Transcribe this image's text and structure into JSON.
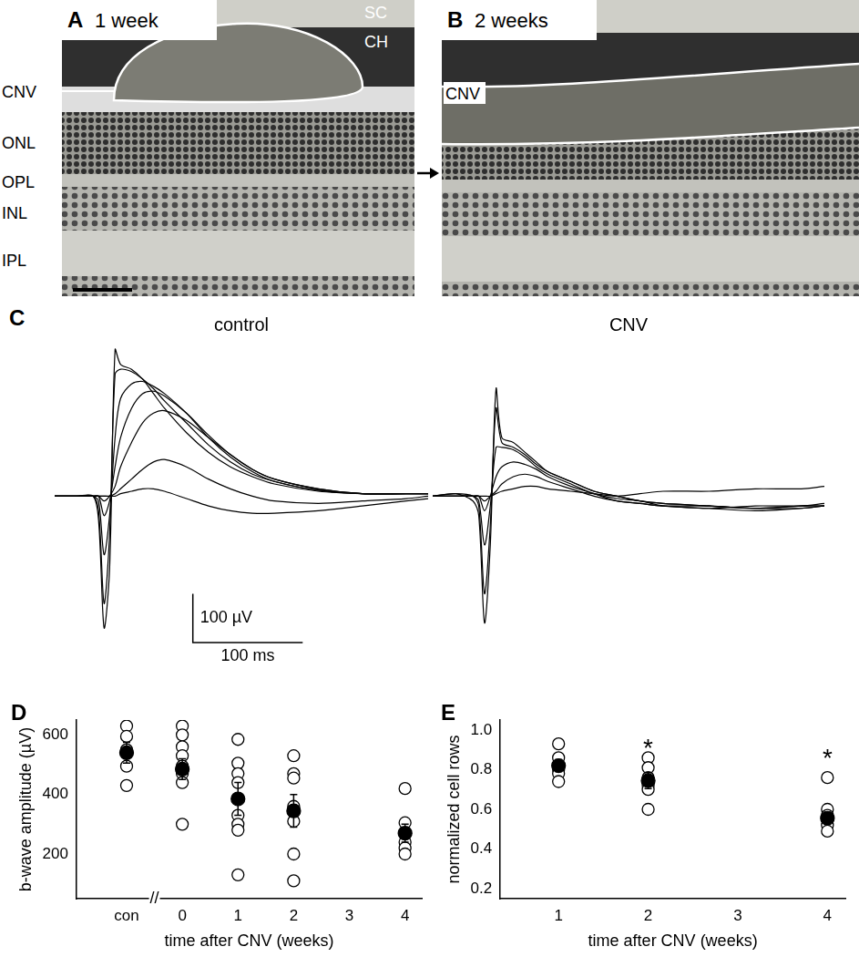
{
  "panel_labels": [
    "A",
    "B",
    "C",
    "D",
    "E"
  ],
  "histology": [
    {
      "caption": "1 week",
      "labels": [
        "CNV",
        "SC",
        "CH",
        "ONL",
        "OPL",
        "INL",
        "IPL"
      ]
    },
    {
      "caption": "2 weeks",
      "labels": [
        "CNV"
      ]
    }
  ],
  "chart_data": [
    {
      "type": "line",
      "title": "control",
      "x": [
        0,
        20,
        35,
        40,
        45,
        50,
        55,
        60,
        70,
        80,
        90,
        100,
        120,
        140,
        160,
        180,
        200,
        240,
        280,
        320,
        340
      ],
      "xlim": [
        0,
        340
      ],
      "ylim": [
        -300,
        320
      ],
      "tick_labels": false,
      "grid": false,
      "series": [
        {
          "color": "#000000",
          "line_style": "solid",
          "values": [
            0,
            0,
            0,
            -50,
            -270,
            -150,
            300,
            270,
            260,
            240,
            210,
            180,
            130,
            90,
            60,
            40,
            25,
            10,
            5,
            5,
            5
          ]
        },
        {
          "color": "#000000",
          "line_style": "solid",
          "values": [
            0,
            0,
            0,
            -30,
            -220,
            -80,
            250,
            260,
            255,
            240,
            220,
            195,
            150,
            105,
            70,
            45,
            30,
            12,
            5,
            5,
            5
          ]
        },
        {
          "color": "#000000",
          "line_style": "solid",
          "values": [
            0,
            0,
            0,
            -10,
            -120,
            -40,
            120,
            200,
            230,
            235,
            225,
            210,
            170,
            120,
            80,
            50,
            30,
            12,
            5,
            5,
            5
          ]
        },
        {
          "color": "#000000",
          "line_style": "solid",
          "values": [
            0,
            0,
            0,
            0,
            -40,
            -10,
            60,
            120,
            180,
            210,
            215,
            205,
            170,
            125,
            85,
            55,
            35,
            15,
            5,
            5,
            5
          ]
        },
        {
          "color": "#000000",
          "line_style": "solid",
          "values": [
            0,
            0,
            0,
            0,
            -10,
            0,
            20,
            60,
            110,
            150,
            170,
            175,
            155,
            120,
            85,
            55,
            35,
            15,
            5,
            5,
            5
          ]
        },
        {
          "color": "#000000",
          "line_style": "solid",
          "values": [
            0,
            0,
            0,
            0,
            0,
            0,
            5,
            15,
            35,
            55,
            70,
            75,
            60,
            35,
            15,
            0,
            -10,
            -15,
            -10,
            -5,
            0
          ]
        },
        {
          "color": "#000000",
          "line_style": "solid",
          "values": [
            0,
            0,
            0,
            0,
            0,
            0,
            0,
            5,
            10,
            15,
            15,
            10,
            -5,
            -20,
            -30,
            -35,
            -35,
            -30,
            -20,
            -10,
            -5
          ]
        }
      ],
      "scale_bar": {
        "x": 100,
        "y": 100,
        "x_label": "100 ms",
        "y_label": "100 µV"
      }
    },
    {
      "type": "line",
      "title": "CNV",
      "x": [
        0,
        20,
        35,
        40,
        45,
        50,
        55,
        60,
        70,
        80,
        90,
        100,
        120,
        140,
        160,
        180,
        200,
        240,
        280,
        320,
        340
      ],
      "xlim": [
        0,
        340
      ],
      "ylim": [
        -300,
        320
      ],
      "tick_labels": false,
      "grid": false,
      "series": [
        {
          "color": "#000000",
          "line_style": "solid",
          "values": [
            0,
            5,
            -10,
            -40,
            -260,
            -100,
            220,
            120,
            110,
            90,
            70,
            50,
            30,
            10,
            0,
            -10,
            -15,
            -20,
            -25,
            -25,
            -20
          ]
        },
        {
          "color": "#000000",
          "line_style": "solid",
          "values": [
            0,
            5,
            0,
            -20,
            -200,
            -60,
            180,
            110,
            100,
            85,
            65,
            50,
            30,
            10,
            0,
            -10,
            -15,
            -20,
            -25,
            -20,
            -20
          ]
        },
        {
          "color": "#000000",
          "line_style": "solid",
          "values": [
            0,
            0,
            0,
            -10,
            -100,
            -20,
            100,
            100,
            95,
            80,
            60,
            45,
            25,
            5,
            -5,
            -10,
            -20,
            -25,
            -30,
            -25,
            -20
          ]
        },
        {
          "color": "#000000",
          "line_style": "solid",
          "values": [
            0,
            0,
            0,
            0,
            -30,
            0,
            40,
            60,
            70,
            65,
            55,
            40,
            20,
            5,
            -10,
            -15,
            -20,
            -20,
            -25,
            -20,
            -20
          ]
        },
        {
          "color": "#000000",
          "line_style": "solid",
          "values": [
            0,
            0,
            0,
            0,
            -10,
            0,
            10,
            25,
            40,
            45,
            40,
            30,
            15,
            0,
            -10,
            -15,
            -20,
            -25,
            -20,
            -20,
            -15
          ]
        },
        {
          "color": "#000000",
          "line_style": "solid",
          "values": [
            0,
            0,
            0,
            0,
            0,
            0,
            5,
            10,
            15,
            20,
            20,
            15,
            10,
            5,
            0,
            5,
            10,
            10,
            15,
            15,
            20
          ]
        }
      ]
    },
    {
      "type": "scatter",
      "x_label": "time after CNV (weeks)",
      "y_label": "b-wave amplitude (µV)",
      "xlim": [
        -1.9,
        4.3
      ],
      "xticks": [
        {
          "value": -1,
          "label": "con"
        },
        0,
        1,
        2,
        3,
        4
      ],
      "ylim": [
        50,
        650
      ],
      "yticks": [
        200,
        400,
        600
      ],
      "grid": false,
      "series": [
        {
          "marker": "open circle",
          "color": "#000000",
          "x": [
            -1,
            -1,
            -1,
            -1,
            -1,
            0,
            0,
            0,
            0,
            0,
            0,
            0,
            0,
            1,
            1,
            1,
            1,
            1,
            1,
            1,
            1,
            2,
            2,
            2,
            2,
            2,
            2,
            2,
            4,
            4,
            4,
            4,
            4,
            4
          ],
          "values": [
            630,
            595,
            550,
            495,
            430,
            630,
            600,
            560,
            530,
            495,
            470,
            440,
            300,
            585,
            505,
            470,
            440,
            330,
            300,
            280,
            130,
            530,
            470,
            455,
            360,
            310,
            200,
            110,
            420,
            305,
            270,
            240,
            220,
            200
          ]
        },
        {
          "marker": "filled circle",
          "color": "#000000",
          "x": [
            -1,
            0,
            1,
            2,
            4
          ],
          "values": [
            540,
            485,
            385,
            345,
            270
          ],
          "error": [
            35,
            35,
            55,
            55,
            30
          ]
        }
      ],
      "annotations": [
        {
          "text": "//",
          "x": -0.5,
          "y": 50
        }
      ]
    },
    {
      "type": "scatter",
      "x_label": "time after CNV (weeks)",
      "y_label": "normalized cell rows",
      "xlim": [
        0.35,
        4.2
      ],
      "xticks": [
        1,
        2,
        3,
        4
      ],
      "ylim": [
        0.15,
        1.05
      ],
      "yticks": [
        0.2,
        0.4,
        0.6,
        0.8,
        {
          "value": 1,
          "label": "1.0"
        }
      ],
      "grid": false,
      "series": [
        {
          "marker": "open circle",
          "color": "#000000",
          "x": [
            1,
            1,
            1,
            1,
            1,
            1,
            2,
            2,
            2,
            2,
            2,
            2,
            4,
            4,
            4,
            4,
            4,
            4
          ],
          "values": [
            0.93,
            0.86,
            0.82,
            0.8,
            0.78,
            0.74,
            0.86,
            0.81,
            0.76,
            0.72,
            0.7,
            0.6,
            0.76,
            0.6,
            0.57,
            0.55,
            0.52,
            0.49
          ]
        },
        {
          "marker": "filled circle",
          "color": "#000000",
          "x": [
            1,
            2,
            4
          ],
          "values": [
            0.82,
            0.745,
            0.555
          ],
          "error": [
            0.03,
            0.04,
            0.03
          ]
        }
      ],
      "annotations": [
        {
          "text": "*",
          "x": 2,
          "y": 0.93
        },
        {
          "text": "*",
          "x": 4,
          "y": 0.88
        }
      ]
    }
  ]
}
